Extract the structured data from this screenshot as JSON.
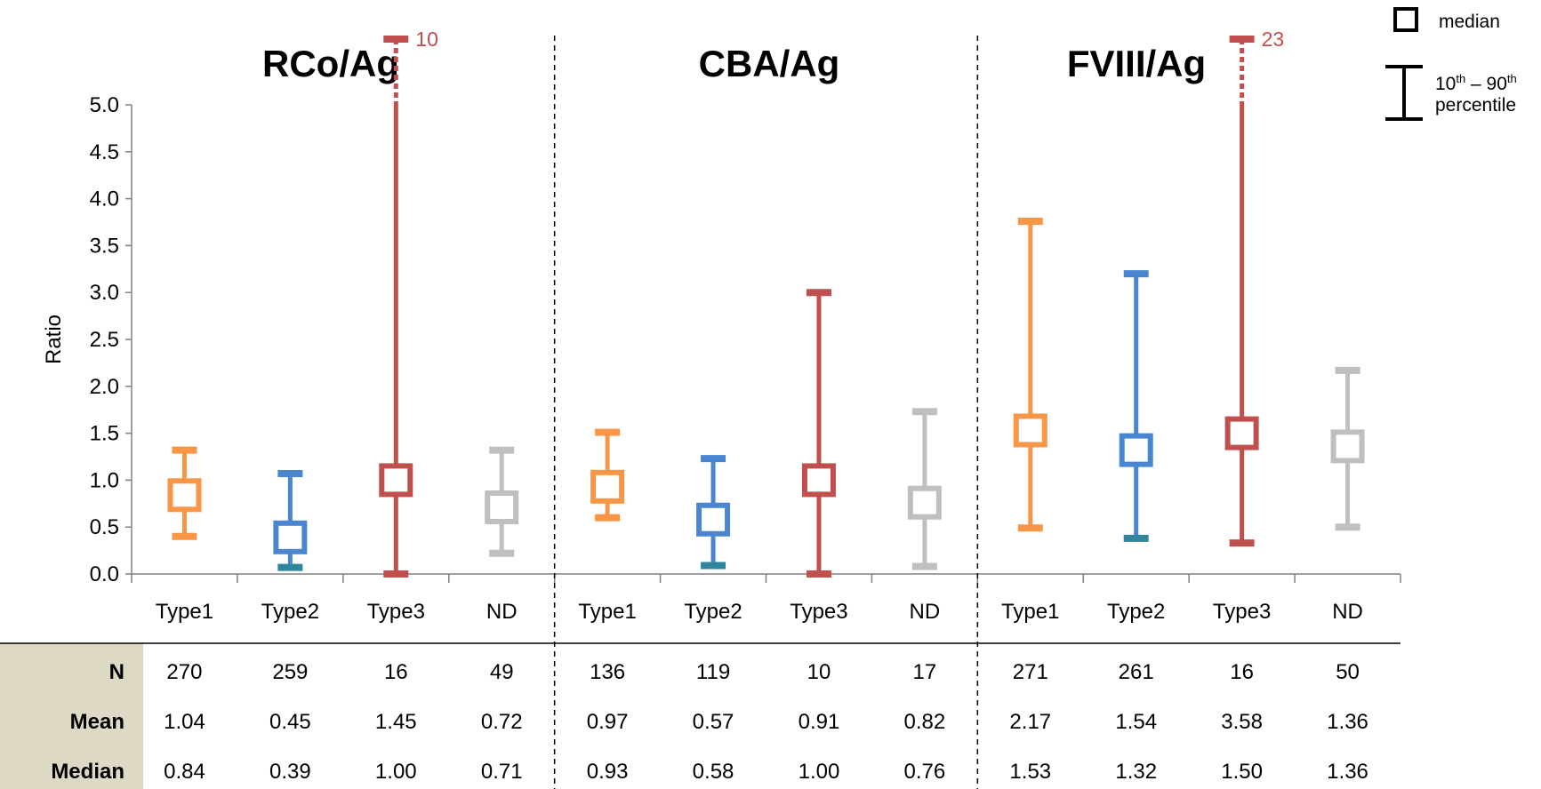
{
  "chart_data": {
    "type": "error-bar",
    "ylabel": "Ratio",
    "ylim": [
      0,
      5
    ],
    "yticks": [
      "0.0",
      "0.5",
      "1.0",
      "1.5",
      "2.0",
      "2.5",
      "3.0",
      "3.5",
      "4.0",
      "4.5",
      "5.0"
    ],
    "category_colors": {
      "Type1": "#F79646",
      "Type2": "#4A86CF",
      "Type3": "#C0504D",
      "ND": "#BFBFBF"
    },
    "low_cap_colors": {
      "Type2": "#31859C"
    },
    "panels": [
      {
        "title": "RCo/Ag",
        "categories": [
          "Type1",
          "Type2",
          "Type3",
          "ND"
        ],
        "p10": [
          0.4,
          0.07,
          0.0,
          0.22
        ],
        "p90": [
          1.32,
          1.07,
          10,
          1.32
        ],
        "median": [
          0.84,
          0.39,
          1.0,
          0.71
        ],
        "outlier_label": "10",
        "table": {
          "N": [
            "270",
            "259",
            "16",
            "49"
          ],
          "Mean": [
            "1.04",
            "0.45",
            "1.45",
            "0.72"
          ],
          "Median": [
            "0.84",
            "0.39",
            "1.00",
            "0.71"
          ]
        }
      },
      {
        "title": "CBA/Ag",
        "categories": [
          "Type1",
          "Type2",
          "Type3",
          "ND"
        ],
        "p10": [
          0.6,
          0.09,
          0.0,
          0.08
        ],
        "p90": [
          1.51,
          1.23,
          3.0,
          1.73
        ],
        "median": [
          0.93,
          0.58,
          1.0,
          0.76
        ],
        "outlier_label": "",
        "table": {
          "N": [
            "136",
            "119",
            "10",
            "17"
          ],
          "Mean": [
            "0.97",
            "0.57",
            "0.91",
            "0.82"
          ],
          "Median": [
            "0.93",
            "0.58",
            "1.00",
            "0.76"
          ]
        }
      },
      {
        "title": "FVIII/Ag",
        "categories": [
          "Type1",
          "Type2",
          "Type3",
          "ND"
        ],
        "p10": [
          0.49,
          0.38,
          0.33,
          0.5
        ],
        "p90": [
          3.76,
          3.2,
          23,
          2.17
        ],
        "median": [
          1.53,
          1.32,
          1.5,
          1.36
        ],
        "outlier_label": "23",
        "table": {
          "N": [
            "271",
            "261",
            "16",
            "50"
          ],
          "Mean": [
            "2.17",
            "1.54",
            "3.58",
            "1.36"
          ],
          "Median": [
            "1.53",
            "1.32",
            "1.50",
            "1.36"
          ]
        }
      }
    ],
    "table_rows": [
      "N",
      "Mean",
      "Median"
    ],
    "legend": {
      "median_label": "median",
      "range_main": "10",
      "range_sup1": "th",
      "range_dash": " – 90",
      "range_sup2": "th",
      "range_sub": "percentile"
    }
  }
}
